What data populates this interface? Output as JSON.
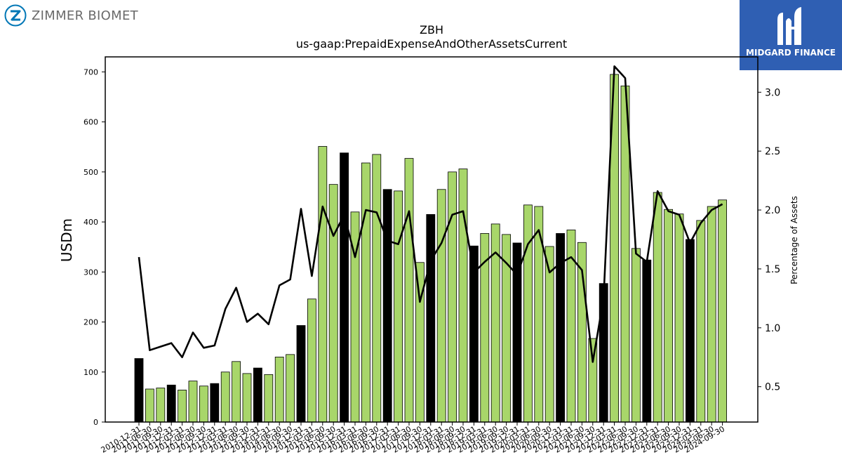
{
  "brand_left": {
    "name": "ZIMMER BIOMET",
    "icon": "zimmer-biomet-z-logo",
    "color": "#0077b6"
  },
  "brand_right": {
    "name": "MIDGARD FINANCE",
    "icon": "midgard-m-logo",
    "background": "#2f5fb3"
  },
  "chart_data": {
    "type": "bar",
    "title": "ZBH",
    "subtitle": "us-gaap:PrepaidExpenseAndOtherAssetsCurrent",
    "ylabel": "USDm",
    "y2label": "Percentage of Assets",
    "ylim": [
      0,
      730
    ],
    "y2lim": [
      0.2,
      3.3
    ],
    "yticks": [
      0,
      100,
      200,
      300,
      400,
      500,
      600,
      700
    ],
    "y2ticks": [
      0.5,
      1.0,
      1.5,
      2.0,
      2.5,
      3.0
    ],
    "grid": false,
    "colors": {
      "annual_bar": "#000000",
      "quarter_bar": "#a8d66a",
      "line": "#000000"
    },
    "categories": [
      "2010-12-31",
      "2011-06-30",
      "2011-09-30",
      "2011-12-31",
      "2012-03-31",
      "2012-06-30",
      "2012-09-30",
      "2012-12-31",
      "2013-03-31",
      "2013-06-30",
      "2013-09-30",
      "2013-12-31",
      "2014-03-31",
      "2014-06-30",
      "2014-09-30",
      "2014-12-31",
      "2015-03-31",
      "2015-06-30",
      "2015-09-30",
      "2015-12-31",
      "2016-03-31",
      "2016-06-30",
      "2016-09-30",
      "2016-12-31",
      "2017-03-31",
      "2017-06-30",
      "2017-09-30",
      "2017-12-31",
      "2018-03-31",
      "2018-06-30",
      "2018-09-30",
      "2018-12-31",
      "2019-03-31",
      "2019-06-30",
      "2019-09-30",
      "2019-12-31",
      "2020-03-31",
      "2020-06-30",
      "2020-09-30",
      "2020-12-31",
      "2021-03-31",
      "2021-06-30",
      "2021-09-30",
      "2021-12-31",
      "2022-03-31",
      "2022-06-30",
      "2022-09-30",
      "2022-12-31",
      "2023-03-31",
      "2023-06-30",
      "2023-09-30",
      "2023-12-31",
      "2024-03-31",
      "2024-06-30",
      "2024-09-30"
    ],
    "series": [
      {
        "values": [
          127,
          66,
          68,
          74,
          64,
          82,
          72,
          77,
          100,
          121,
          97,
          108,
          95,
          130,
          135,
          193,
          246,
          551,
          475,
          538,
          420,
          518,
          535,
          465,
          462,
          527,
          319,
          415,
          465,
          500,
          506,
          352,
          377,
          396,
          375,
          358,
          434,
          431,
          351,
          377,
          384,
          359,
          167,
          277,
          695,
          672,
          347,
          324,
          459,
          425,
          416,
          365,
          403,
          431,
          444
        ],
        "annual": [
          true,
          false,
          false,
          true,
          false,
          false,
          false,
          true,
          false,
          false,
          false,
          true,
          false,
          false,
          false,
          true,
          false,
          false,
          false,
          true,
          false,
          false,
          false,
          true,
          false,
          false,
          false,
          true,
          false,
          false,
          false,
          true,
          false,
          false,
          false,
          true,
          false,
          false,
          false,
          true,
          false,
          false,
          false,
          true,
          false,
          false,
          false,
          true,
          false,
          false,
          false,
          true,
          false,
          false,
          false
        ]
      },
      {
        "name": "Percentage of Assets",
        "values": [
          1.6,
          0.81,
          0.84,
          0.87,
          0.75,
          0.96,
          0.83,
          0.85,
          1.16,
          1.34,
          1.05,
          1.12,
          1.03,
          1.36,
          1.41,
          2.01,
          1.44,
          2.03,
          1.78,
          1.96,
          1.6,
          2.0,
          1.98,
          1.74,
          1.71,
          1.99,
          1.22,
          1.57,
          1.72,
          1.96,
          1.99,
          1.47,
          1.56,
          1.64,
          1.55,
          1.45,
          1.71,
          1.83,
          1.47,
          1.55,
          1.6,
          1.49,
          0.71,
          1.25,
          3.22,
          3.12,
          1.63,
          1.56,
          2.16,
          1.99,
          1.96,
          1.72,
          1.89,
          2.0,
          2.05
        ]
      }
    ]
  }
}
